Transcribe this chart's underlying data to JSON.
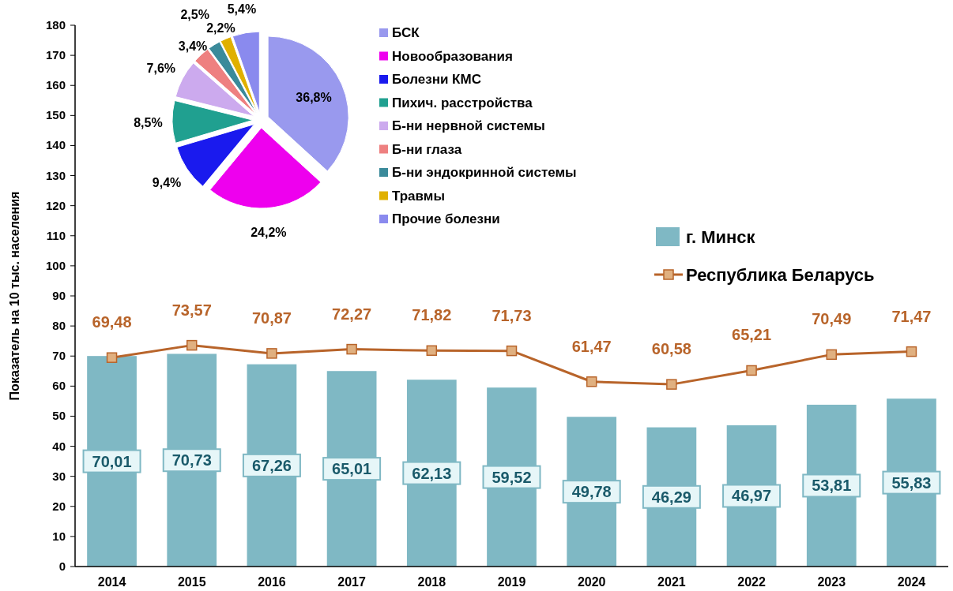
{
  "chart_data": [
    {
      "type": "bar",
      "ylabel": "Показатель на 10 тыс. населения",
      "categories": [
        "2014",
        "2015",
        "2016",
        "2017",
        "2018",
        "2019",
        "2020",
        "2021",
        "2022",
        "2023",
        "2024"
      ],
      "series": [
        {
          "name": "г. Минск",
          "type": "bar",
          "color": "#7fb8c4",
          "values": [
            70.01,
            70.73,
            67.26,
            65.01,
            62.13,
            59.52,
            49.78,
            46.29,
            46.97,
            53.81,
            55.83
          ],
          "value_labels": [
            "70,01",
            "70,73",
            "67,26",
            "65,01",
            "62,13",
            "59,52",
            "49,78",
            "46,29",
            "46,97",
            "53,81",
            "55,83"
          ]
        },
        {
          "name": "Республика Беларусь",
          "type": "line",
          "color": "#b8642a",
          "marker": "square",
          "values": [
            69.48,
            73.57,
            70.87,
            72.27,
            71.82,
            71.73,
            61.47,
            60.58,
            65.21,
            70.49,
            71.47
          ],
          "value_labels": [
            "69,48",
            "73,57",
            "70,87",
            "72,27",
            "71,82",
            "71,73",
            "61,47",
            "60,58",
            "65,21",
            "70,49",
            "71,47"
          ]
        }
      ],
      "ylim": [
        0,
        180
      ],
      "yticks": [
        0,
        10,
        20,
        30,
        40,
        50,
        60,
        70,
        80,
        90,
        100,
        110,
        120,
        130,
        140,
        150,
        160,
        170,
        180
      ],
      "grid": false,
      "legend": "right"
    },
    {
      "type": "pie",
      "categories": [
        "БСК",
        "Новообразования",
        "Болезни КМС",
        "Пихич. расстройства",
        "Б-ни нервной системы",
        "Б-ни глаза",
        "Б-ни эндокринной системы",
        "Травмы",
        "Прочие болезни"
      ],
      "values": [
        36.8,
        24.2,
        9.4,
        8.5,
        7.6,
        3.4,
        2.5,
        2.2,
        5.4
      ],
      "value_labels": [
        "36,8%",
        "24,2%",
        "9,4%",
        "8,5%",
        "7,6%",
        "3,4%",
        "2,5%",
        "2,2%",
        "5,4%"
      ],
      "colors": [
        "#9999ee",
        "#ee00ee",
        "#1a1aee",
        "#20a090",
        "#ccaaee",
        "#ee8080",
        "#3a8a9a",
        "#e0b000",
        "#8a8aee"
      ],
      "legend": "right"
    }
  ]
}
